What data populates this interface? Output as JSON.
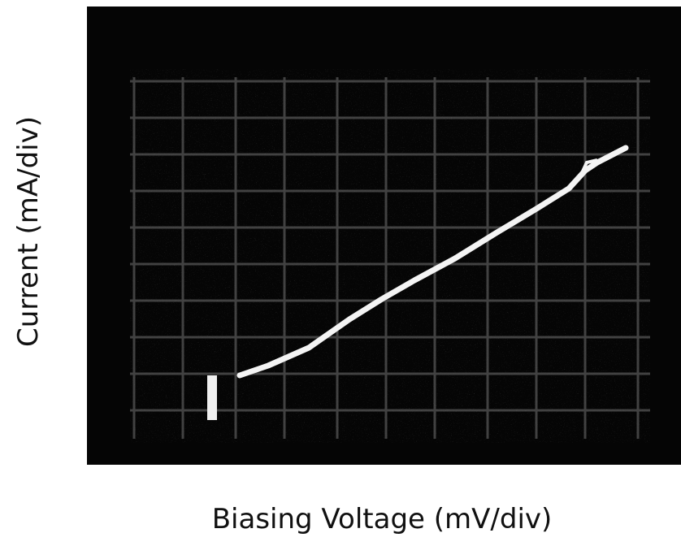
{
  "image": {
    "y_label": "Current (mA/div)",
    "x_label": "Biasing Voltage (mV/div)"
  }
}
